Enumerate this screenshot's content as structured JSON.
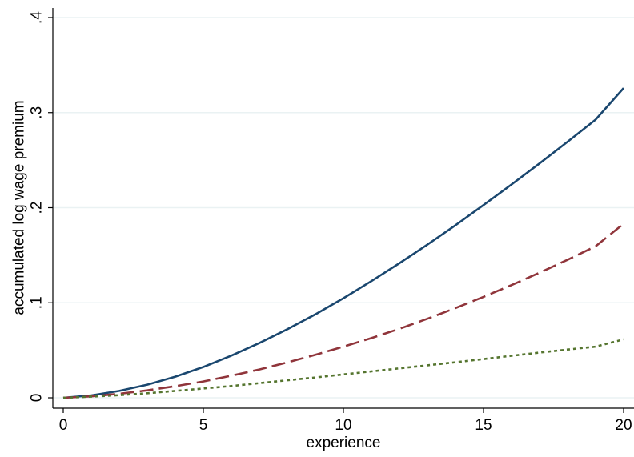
{
  "chart_data": {
    "type": "line",
    "title": "",
    "xlabel": "experience",
    "ylabel": "accumulated log wage premium",
    "xlim": [
      0,
      20
    ],
    "ylim": [
      0,
      0.4
    ],
    "xticks": [
      {
        "value": 0,
        "label": "0"
      },
      {
        "value": 5,
        "label": "5"
      },
      {
        "value": 10,
        "label": "10"
      },
      {
        "value": 15,
        "label": "15"
      },
      {
        "value": 20,
        "label": "20"
      }
    ],
    "yticks": [
      {
        "value": 0,
        "label": "0"
      },
      {
        "value": 0.1,
        "label": ".1"
      },
      {
        "value": 0.2,
        "label": ".2"
      },
      {
        "value": 0.3,
        "label": ".3"
      },
      {
        "value": 0.4,
        "label": ".4"
      }
    ],
    "grid": {
      "horizontal": true,
      "vertical": false
    },
    "x": [
      0,
      1,
      2,
      3,
      4,
      5,
      6,
      7,
      8,
      9,
      10,
      11,
      12,
      13,
      14,
      15,
      16,
      17,
      18,
      19,
      20
    ],
    "series": [
      {
        "style": "solid",
        "color": "#1a476f",
        "values": [
          0,
          0.0025,
          0.0072,
          0.0138,
          0.0222,
          0.0324,
          0.0444,
          0.0576,
          0.0722,
          0.0878,
          0.1048,
          0.1228,
          0.1416,
          0.1612,
          0.1816,
          0.2028,
          0.2244,
          0.2466,
          0.2694,
          0.2926,
          0.3258
        ]
      },
      {
        "style": "dashed",
        "color": "#90353b",
        "values": [
          0,
          0.0015,
          0.0042,
          0.0078,
          0.0122,
          0.0172,
          0.0232,
          0.0298,
          0.0372,
          0.0452,
          0.0538,
          0.0628,
          0.0726,
          0.0832,
          0.0944,
          0.1062,
          0.1186,
          0.1316,
          0.1452,
          0.1594,
          0.1832
        ]
      },
      {
        "style": "dotted",
        "color": "#55752f",
        "values": [
          0,
          0.0012,
          0.0028,
          0.0048,
          0.0072,
          0.0098,
          0.0124,
          0.0154,
          0.0184,
          0.0214,
          0.0246,
          0.0278,
          0.031,
          0.0342,
          0.0374,
          0.0408,
          0.0442,
          0.0476,
          0.0508,
          0.0538,
          0.0615
        ]
      }
    ]
  }
}
